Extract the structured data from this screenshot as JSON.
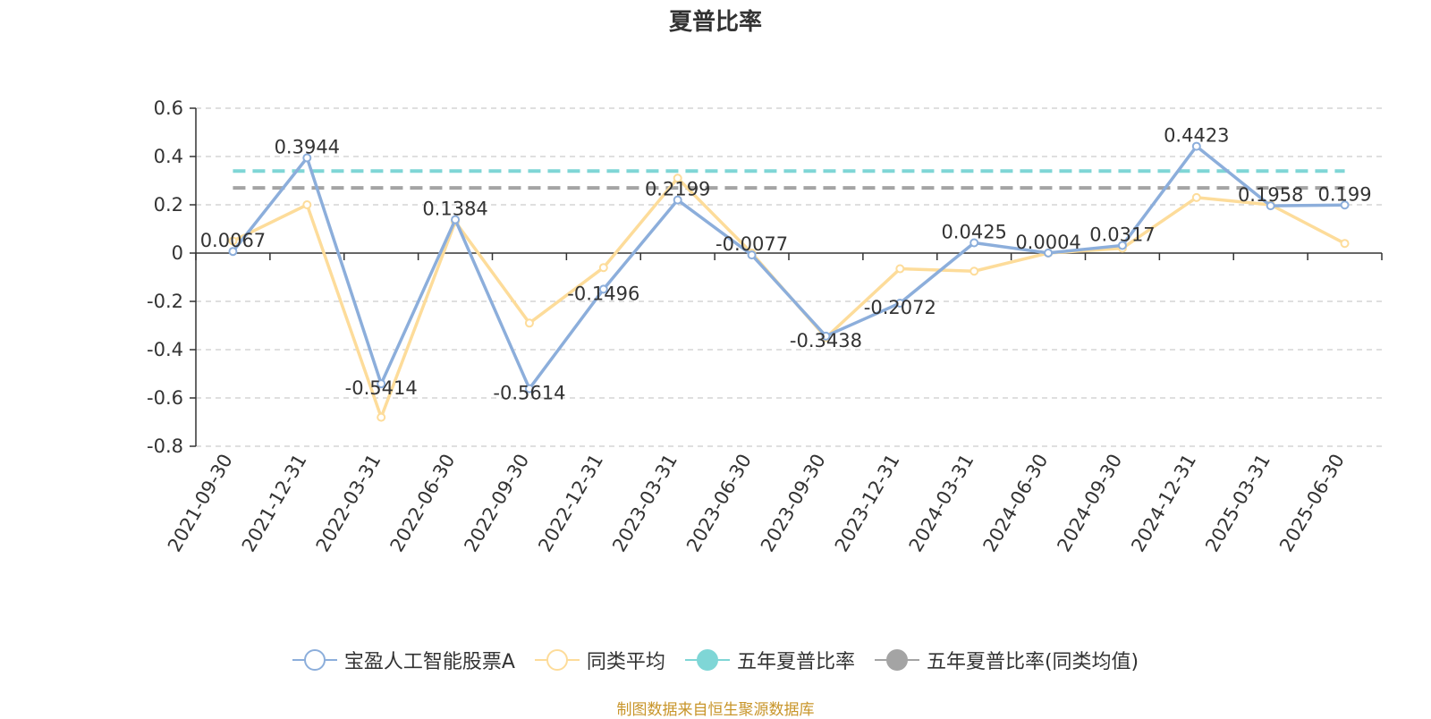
{
  "chart_data": {
    "type": "line",
    "title": "夏普比率",
    "categories": [
      "2021-09-30",
      "2021-12-31",
      "2022-03-31",
      "2022-06-30",
      "2022-09-30",
      "2022-12-31",
      "2023-03-31",
      "2023-06-30",
      "2023-09-30",
      "2023-12-31",
      "2024-03-31",
      "2024-06-30",
      "2024-09-30",
      "2024-12-31",
      "2025-03-31",
      "2025-06-30"
    ],
    "ylim": [
      -0.8,
      0.6
    ],
    "yticks": [
      "0.6",
      "0.4",
      "0.2",
      "0",
      "-0.2",
      "-0.4",
      "-0.6",
      "-0.8"
    ],
    "grid": true,
    "legend_position": "bottom",
    "series": [
      {
        "name": "宝盈人工智能股票A",
        "color": "#8caedb",
        "values": [
          0.0067,
          0.3944,
          -0.5414,
          0.1384,
          -0.5614,
          -0.1496,
          0.2199,
          -0.0077,
          -0.3438,
          -0.2072,
          0.0425,
          0.0004,
          0.0317,
          0.4423,
          0.1958,
          0.199
        ],
        "labels": [
          "0.0067",
          "0.3944",
          "-0.5414",
          "0.1384",
          "-0.5614",
          "-0.1496",
          "0.2199",
          "-0.0077",
          "-0.3438",
          "-0.2072",
          "0.0425",
          "0.0004",
          "0.0317",
          "0.4423",
          "0.1958",
          "0.199"
        ]
      },
      {
        "name": "同类平均",
        "color": "#fddc9a",
        "values": [
          0.05,
          0.2,
          -0.68,
          0.13,
          -0.29,
          -0.06,
          0.31,
          0.0,
          -0.35,
          -0.065,
          -0.075,
          0.0,
          0.02,
          0.23,
          0.2,
          0.04
        ]
      }
    ],
    "reference_lines": [
      {
        "name": "五年夏普比率",
        "color": "#7fd6d6",
        "value": 0.34
      },
      {
        "name": "五年夏普比率(同类均值)",
        "color": "#a4a4a4",
        "value": 0.27
      }
    ]
  },
  "source_note": "制图数据来自恒生聚源数据库"
}
